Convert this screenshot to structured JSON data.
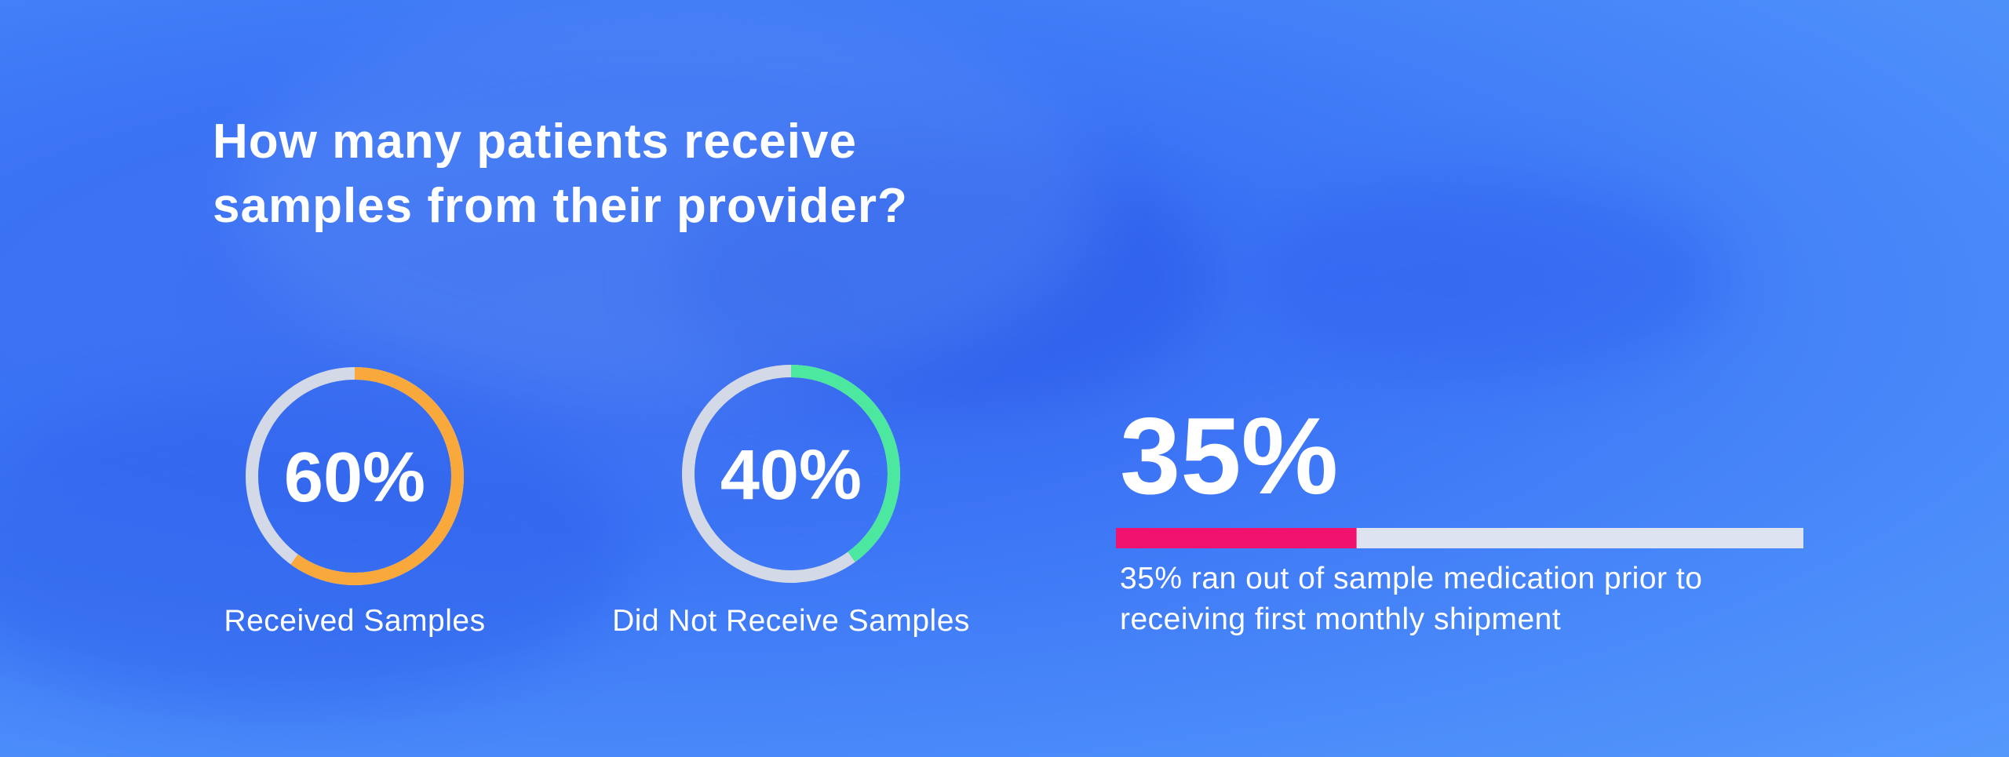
{
  "title": "How many patients receive samples from their provider?",
  "chart_data": [
    {
      "type": "donut",
      "values": [
        60
      ],
      "value_labels": [
        "60%"
      ],
      "label": "Received Samples",
      "color": "#f9a93b",
      "track_color": "#d3d9e6",
      "ylim": [
        0,
        100
      ]
    },
    {
      "type": "donut",
      "values": [
        40
      ],
      "value_labels": [
        "40%"
      ],
      "label": "Did Not Receive Samples",
      "color": "#4de8a0",
      "track_color": "#d3d9e6",
      "ylim": [
        0,
        100
      ]
    },
    {
      "type": "progress",
      "values": [
        35
      ],
      "value_labels": [
        "35%"
      ],
      "description": "35% ran out of sample medication prior to receiving first monthly shipment",
      "color": "#f0126e",
      "track_color": "#dde3ef",
      "xlim": [
        0,
        100
      ]
    }
  ]
}
